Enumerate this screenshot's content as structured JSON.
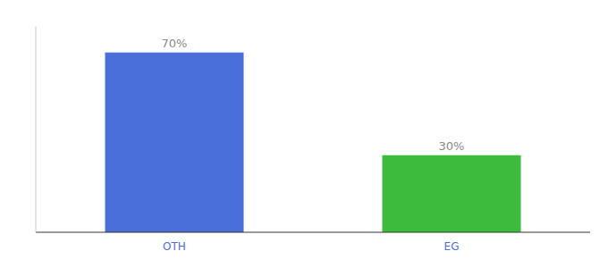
{
  "chart_data": {
    "type": "bar",
    "categories": [
      "OTH",
      "EG"
    ],
    "values": [
      70,
      30
    ],
    "value_labels": [
      "70%",
      "30%"
    ],
    "colors": [
      "#4a6fdb",
      "#3dbb3d"
    ],
    "ylim": [
      0,
      80
    ],
    "data_labels": true,
    "tick_labels": "x"
  }
}
